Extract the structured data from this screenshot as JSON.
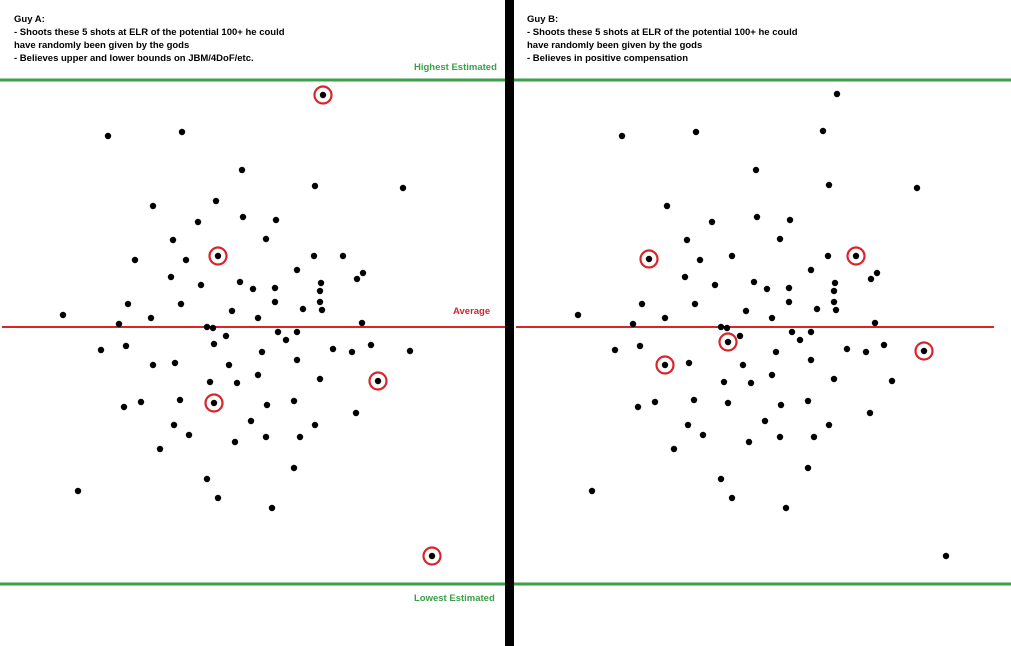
{
  "guy_a": {
    "title": "Guy A:",
    "lines": [
      "- Shoots these 5 shots at ELR of the potential 100+ he could",
      "have randomly been given by the gods",
      "- Believes upper and lower bounds on JBM/4DoF/etc."
    ]
  },
  "guy_b": {
    "title": "Guy B:",
    "lines": [
      "- Shoots these 5 shots at ELR of the potential 100+ he could",
      "have randomly been given by the gods",
      "- Believes in positive compensation"
    ]
  },
  "labels": {
    "highest": "Highest Estimated",
    "average": "Average",
    "lowest": "Lowest Estimated"
  },
  "colors": {
    "bound_line": "#3ba04a",
    "average_line": "#d9242a",
    "divider": "#000000",
    "dot": "#000000",
    "circle": "#d9242a"
  }
}
